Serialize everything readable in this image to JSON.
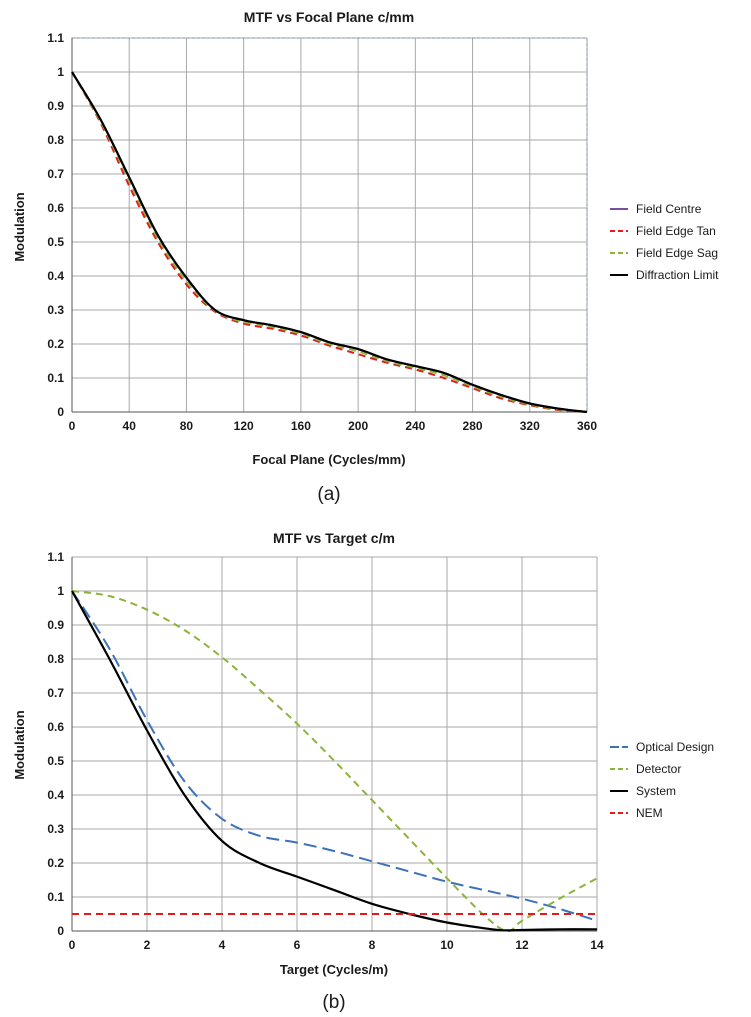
{
  "chart_data": [
    {
      "type": "line",
      "title": "MTF vs Focal Plane c/mm",
      "xlabel": "Focal Plane (Cycles/mm)",
      "ylabel": "Modulation",
      "panel_label": "(a)",
      "xlim": [
        0,
        360
      ],
      "ylim": [
        0,
        1.1
      ],
      "x_ticks": [
        "0",
        "40",
        "80",
        "120",
        "160",
        "200",
        "240",
        "280",
        "320",
        "360"
      ],
      "y_ticks": [
        "0",
        "0.1",
        "0.2",
        "0.3",
        "0.4",
        "0.5",
        "0.6",
        "0.7",
        "0.8",
        "0.9",
        "1",
        "1.1"
      ],
      "grid": true,
      "legend_position": "right",
      "series": [
        {
          "name": "Field Centre",
          "color": "#7a4ea0",
          "dash": "solid",
          "x": [
            0,
            20,
            40,
            60,
            80,
            100,
            120,
            140,
            160,
            180,
            200,
            220,
            240,
            260,
            280,
            300,
            320,
            340,
            360
          ],
          "y": [
            1.0,
            0.86,
            0.69,
            0.52,
            0.395,
            0.3,
            0.27,
            0.255,
            0.235,
            0.205,
            0.185,
            0.155,
            0.135,
            0.115,
            0.08,
            0.05,
            0.025,
            0.01,
            0.0
          ]
        },
        {
          "name": "Field Edge Tan",
          "color": "#e41a1c",
          "dash": "dashed",
          "x": [
            0,
            20,
            40,
            60,
            80,
            100,
            120,
            140,
            160,
            180,
            200,
            220,
            240,
            260,
            280,
            300,
            320,
            340,
            360
          ],
          "y": [
            1.0,
            0.85,
            0.665,
            0.5,
            0.375,
            0.295,
            0.26,
            0.245,
            0.225,
            0.195,
            0.17,
            0.145,
            0.125,
            0.1,
            0.07,
            0.04,
            0.02,
            0.006,
            0.0
          ]
        },
        {
          "name": "Field Edge Sag",
          "color": "#8db33a",
          "dash": "dashed",
          "x": [
            0,
            20,
            40,
            60,
            80,
            100,
            120,
            140,
            160,
            180,
            200,
            220,
            240,
            260,
            280,
            300,
            320,
            340,
            360
          ],
          "y": [
            1.0,
            0.855,
            0.68,
            0.51,
            0.385,
            0.298,
            0.265,
            0.25,
            0.23,
            0.2,
            0.178,
            0.15,
            0.13,
            0.108,
            0.075,
            0.045,
            0.022,
            0.008,
            0.0
          ]
        },
        {
          "name": "Diffraction Limit",
          "color": "#000000",
          "dash": "solid",
          "x": [
            0,
            20,
            40,
            60,
            80,
            100,
            120,
            140,
            160,
            180,
            200,
            220,
            240,
            260,
            280,
            300,
            320,
            340,
            360
          ],
          "y": [
            1.0,
            0.86,
            0.69,
            0.52,
            0.395,
            0.3,
            0.27,
            0.255,
            0.235,
            0.205,
            0.185,
            0.155,
            0.135,
            0.115,
            0.08,
            0.05,
            0.025,
            0.01,
            0.0
          ]
        }
      ]
    },
    {
      "type": "line",
      "title": "MTF vs Target c/m",
      "xlabel": "Target (Cycles/m)",
      "ylabel": "Modulation",
      "panel_label": "(b)",
      "xlim": [
        0,
        14
      ],
      "ylim": [
        0,
        1.1
      ],
      "x_ticks": [
        "0",
        "2",
        "4",
        "6",
        "8",
        "10",
        "12",
        "14"
      ],
      "y_ticks": [
        "0",
        "0.1",
        "0.2",
        "0.3",
        "0.4",
        "0.5",
        "0.6",
        "0.7",
        "0.8",
        "0.9",
        "1",
        "1.1"
      ],
      "grid": true,
      "legend_position": "right",
      "series": [
        {
          "name": "Optical Design",
          "color": "#3d72b8",
          "dash": "long-dash",
          "x": [
            0,
            1,
            2,
            3,
            4,
            5,
            6,
            7,
            8,
            9,
            10,
            11,
            12,
            13,
            14
          ],
          "y": [
            1.0,
            0.83,
            0.62,
            0.44,
            0.33,
            0.28,
            0.26,
            0.235,
            0.205,
            0.175,
            0.145,
            0.12,
            0.095,
            0.065,
            0.03
          ]
        },
        {
          "name": "Detector",
          "color": "#8db33a",
          "dash": "dashed",
          "x": [
            0,
            1,
            2,
            3,
            4,
            5,
            6,
            7,
            8,
            9,
            10,
            11,
            11.6,
            12,
            13,
            14
          ],
          "y": [
            1.0,
            0.985,
            0.945,
            0.885,
            0.805,
            0.71,
            0.61,
            0.5,
            0.385,
            0.27,
            0.155,
            0.045,
            0.0,
            0.03,
            0.095,
            0.155
          ]
        },
        {
          "name": "System",
          "color": "#000000",
          "dash": "solid",
          "x": [
            0,
            1,
            2,
            3,
            4,
            5,
            6,
            7,
            8,
            9,
            10,
            11,
            11.5,
            12,
            13,
            14
          ],
          "y": [
            1.0,
            0.8,
            0.59,
            0.4,
            0.265,
            0.2,
            0.16,
            0.12,
            0.08,
            0.05,
            0.025,
            0.008,
            0.002,
            0.003,
            0.005,
            0.005
          ]
        },
        {
          "name": "NEM",
          "color": "#e41a1c",
          "dash": "dashed",
          "x": [
            0,
            14
          ],
          "y": [
            0.05,
            0.05
          ]
        }
      ]
    }
  ]
}
